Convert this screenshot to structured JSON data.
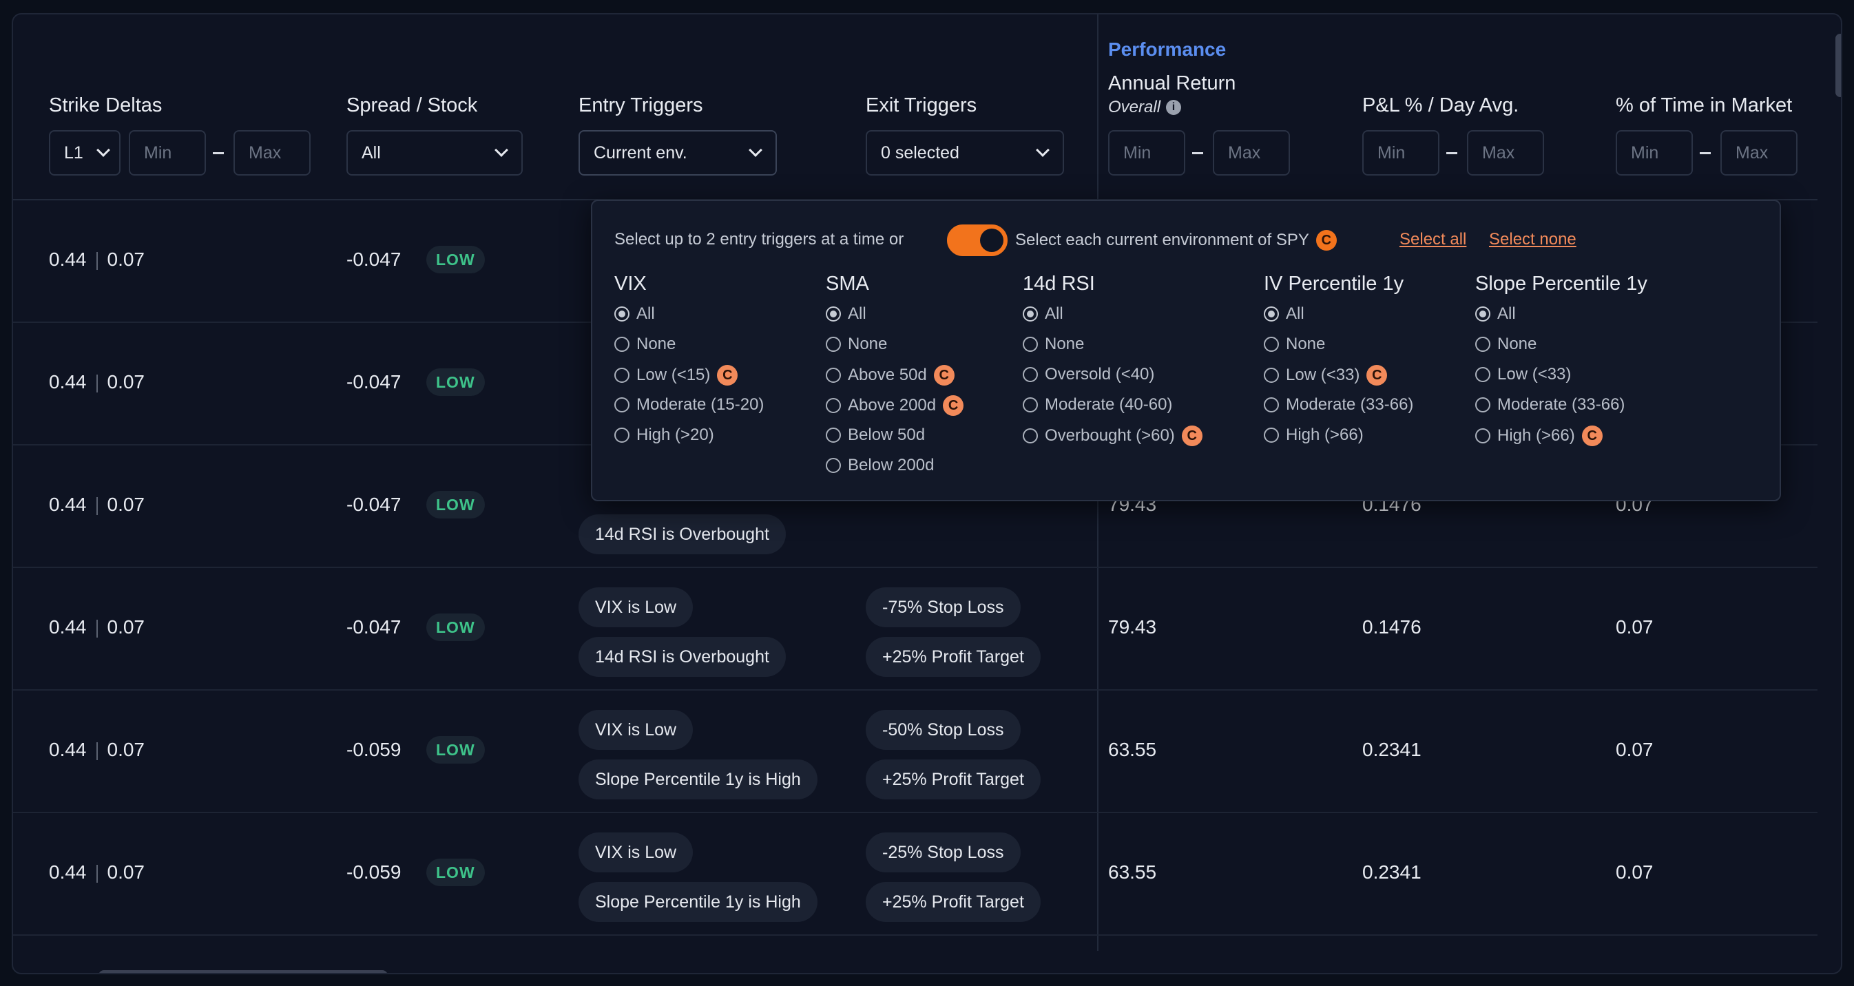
{
  "columns": {
    "strike_deltas": "Strike Deltas",
    "spread_stock": "Spread / Stock",
    "entry_triggers": "Entry Triggers",
    "exit_triggers": "Exit Triggers",
    "performance": "Performance",
    "annual_return": "Annual Return",
    "overall": "Overall",
    "pnl_day": "P&L % / Day Avg.",
    "time_in_market": "% of Time in Market"
  },
  "filters": {
    "leg_select": "L1",
    "min_placeholder": "Min",
    "max_placeholder": "Max",
    "spread_select": "All",
    "entry_select": "Current env.",
    "exit_select": "0 selected"
  },
  "popup": {
    "intro": "Select up to 2 entry triggers at a time or",
    "toggle_label": "Select each current environment of SPY",
    "c_badge": "C",
    "select_all": "Select all",
    "select_none": "Select none",
    "groups": [
      {
        "title": "VIX",
        "options": [
          {
            "label": "All",
            "selected": true,
            "current": false
          },
          {
            "label": "None",
            "selected": false,
            "current": false
          },
          {
            "label": "Low (<15)",
            "selected": false,
            "current": true
          },
          {
            "label": "Moderate (15-20)",
            "selected": false,
            "current": false
          },
          {
            "label": "High (>20)",
            "selected": false,
            "current": false
          }
        ]
      },
      {
        "title": "SMA",
        "options": [
          {
            "label": "All",
            "selected": true,
            "current": false
          },
          {
            "label": "None",
            "selected": false,
            "current": false
          },
          {
            "label": "Above 50d",
            "selected": false,
            "current": true
          },
          {
            "label": "Above 200d",
            "selected": false,
            "current": true
          },
          {
            "label": "Below 50d",
            "selected": false,
            "current": false
          },
          {
            "label": "Below 200d",
            "selected": false,
            "current": false
          }
        ]
      },
      {
        "title": "14d RSI",
        "options": [
          {
            "label": "All",
            "selected": true,
            "current": false
          },
          {
            "label": "None",
            "selected": false,
            "current": false
          },
          {
            "label": "Oversold (<40)",
            "selected": false,
            "current": false
          },
          {
            "label": "Moderate (40-60)",
            "selected": false,
            "current": false
          },
          {
            "label": "Overbought (>60)",
            "selected": false,
            "current": true
          }
        ]
      },
      {
        "title": "IV Percentile 1y",
        "options": [
          {
            "label": "All",
            "selected": true,
            "current": false
          },
          {
            "label": "None",
            "selected": false,
            "current": false
          },
          {
            "label": "Low (<33)",
            "selected": false,
            "current": true
          },
          {
            "label": "Moderate (33-66)",
            "selected": false,
            "current": false
          },
          {
            "label": "High (>66)",
            "selected": false,
            "current": false
          }
        ]
      },
      {
        "title": "Slope Percentile 1y",
        "options": [
          {
            "label": "All",
            "selected": true,
            "current": false
          },
          {
            "label": "None",
            "selected": false,
            "current": false
          },
          {
            "label": "Low (<33)",
            "selected": false,
            "current": false
          },
          {
            "label": "Moderate (33-66)",
            "selected": false,
            "current": false
          },
          {
            "label": "High (>66)",
            "selected": false,
            "current": true
          }
        ]
      }
    ]
  },
  "rows": [
    {
      "d1": "0.44",
      "d2": "0.07",
      "spread": "-0.047",
      "badge": "LOW",
      "entry": [],
      "exit": [],
      "annual": "",
      "pnl": "",
      "time": ""
    },
    {
      "d1": "0.44",
      "d2": "0.07",
      "spread": "-0.047",
      "badge": "LOW",
      "entry": [],
      "exit": [],
      "annual": "",
      "pnl": "",
      "time": ""
    },
    {
      "d1": "0.44",
      "d2": "0.07",
      "spread": "-0.047",
      "badge": "LOW",
      "entry": [
        "14d RSI is Overbought"
      ],
      "exit": [],
      "annual": "79.43",
      "pnl": "0.1476",
      "time": "0.07"
    },
    {
      "d1": "0.44",
      "d2": "0.07",
      "spread": "-0.047",
      "badge": "LOW",
      "entry": [
        "VIX is Low",
        "14d RSI is Overbought"
      ],
      "exit": [
        "-75% Stop Loss",
        "+25% Profit Target"
      ],
      "annual": "79.43",
      "pnl": "0.1476",
      "time": "0.07"
    },
    {
      "d1": "0.44",
      "d2": "0.07",
      "spread": "-0.059",
      "badge": "LOW",
      "entry": [
        "VIX is Low",
        "Slope Percentile 1y is High"
      ],
      "exit": [
        "-50% Stop Loss",
        "+25% Profit Target"
      ],
      "annual": "63.55",
      "pnl": "0.2341",
      "time": "0.07"
    },
    {
      "d1": "0.44",
      "d2": "0.07",
      "spread": "-0.059",
      "badge": "LOW",
      "entry": [
        "VIX is Low",
        "Slope Percentile 1y is High"
      ],
      "exit": [
        "-25% Stop Loss",
        "+25% Profit Target"
      ],
      "annual": "63.55",
      "pnl": "0.2341",
      "time": "0.07"
    }
  ],
  "colors": {
    "accent": "#f2731c",
    "link": "#f28a5a",
    "performance": "#5b8ef0",
    "low_badge": "#3ec38a"
  }
}
